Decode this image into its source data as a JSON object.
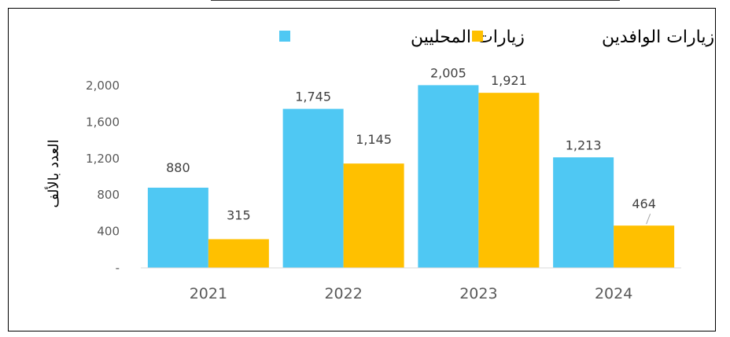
{
  "chart_data": {
    "type": "bar",
    "categories": [
      "2021",
      "2022",
      "2023",
      "2024"
    ],
    "series": [
      {
        "name": "زيارات المحليين",
        "values": [
          880,
          1745,
          2005,
          1213
        ],
        "labels": [
          "880",
          "1,745",
          "2,005",
          "1,213"
        ],
        "color": "#4FC8F3"
      },
      {
        "name": "زيارات الوافدين",
        "values": [
          315,
          1145,
          1921,
          464
        ],
        "labels": [
          "315",
          "1,145",
          "1,921",
          "464"
        ],
        "color": "#FFC000"
      }
    ],
    "ylabel": "العدد بالألف",
    "ylim": [
      0,
      2000
    ],
    "yticks": [
      0,
      400,
      800,
      1200,
      1600,
      2000
    ],
    "ytick_labels": [
      "-",
      "400",
      "800",
      "1,200",
      "1,600",
      "2,000"
    ],
    "grid": false,
    "legend_position": "top"
  }
}
